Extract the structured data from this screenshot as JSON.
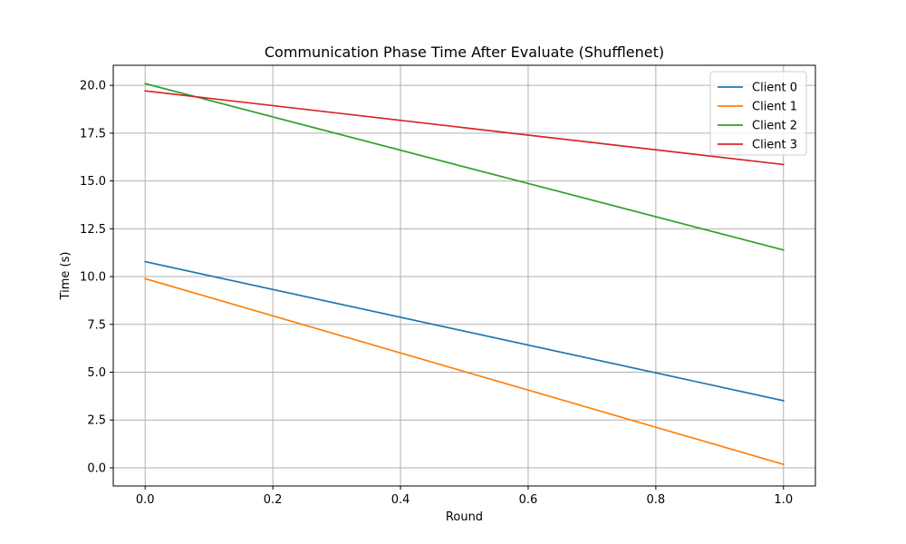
{
  "chart_data": {
    "type": "line",
    "title": "Communication Phase Time After Evaluate (Shufflenet)",
    "xlabel": "Round",
    "ylabel": "Time (s)",
    "xlim": [
      -0.05,
      1.05
    ],
    "ylim": [
      -0.95,
      21.05
    ],
    "xticks": [
      0.0,
      0.2,
      0.4,
      0.6,
      0.8,
      1.0
    ],
    "xtick_labels": [
      "0.0",
      "0.2",
      "0.4",
      "0.6",
      "0.8",
      "1.0"
    ],
    "yticks": [
      0.0,
      2.5,
      5.0,
      7.5,
      10.0,
      12.5,
      15.0,
      17.5,
      20.0
    ],
    "ytick_labels": [
      "0.0",
      "2.5",
      "5.0",
      "7.5",
      "10.0",
      "12.5",
      "15.0",
      "17.5",
      "20.0"
    ],
    "grid": true,
    "legend_position": "top-right",
    "x": [
      0,
      1
    ],
    "series": [
      {
        "name": "Client 0",
        "color": "#1f77b4",
        "values": [
          10.78,
          3.51
        ]
      },
      {
        "name": "Client 1",
        "color": "#ff7f0e",
        "values": [
          9.89,
          0.18
        ]
      },
      {
        "name": "Client 2",
        "color": "#2ca02c",
        "values": [
          20.09,
          11.39
        ]
      },
      {
        "name": "Client 3",
        "color": "#d62728",
        "values": [
          19.71,
          15.86
        ]
      }
    ]
  }
}
